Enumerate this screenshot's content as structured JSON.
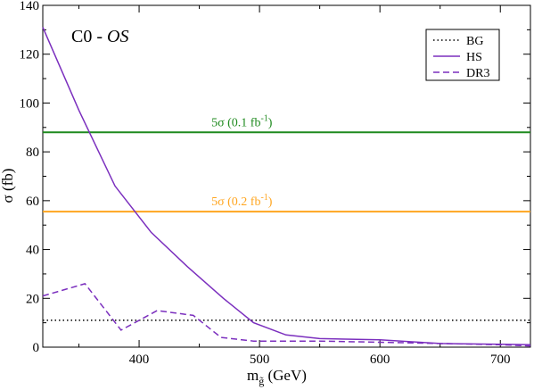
{
  "chart_data": {
    "type": "line",
    "title_main": "C0 - ",
    "title_italic": "OS",
    "ylabel": "σ (fb)",
    "xlabel_main": "m",
    "xlabel_sub": "g̃",
    "xlabel_unit": " (GeV)",
    "xlim": [
      320,
      725
    ],
    "ylim": [
      0,
      140
    ],
    "xticks": [
      400,
      500,
      600,
      700
    ],
    "yticks": [
      0,
      20,
      40,
      60,
      80,
      100,
      120,
      140
    ],
    "series": [
      {
        "name": "BG",
        "color": "#000000",
        "style": "dotted",
        "x": [
          320,
          725
        ],
        "y": [
          11,
          11
        ]
      },
      {
        "name": "HS",
        "color": "#7b2fbe",
        "style": "solid",
        "x": [
          320,
          350,
          380,
          410,
          440,
          470,
          495,
          522,
          550,
          600,
          650,
          700,
          725
        ],
        "y": [
          131,
          97,
          66,
          47,
          33,
          20,
          10,
          5,
          3.5,
          3,
          1.5,
          1.2,
          1
        ]
      },
      {
        "name": "DR3",
        "color": "#7b2fbe",
        "style": "dashed",
        "x": [
          320,
          355,
          385,
          415,
          445,
          468,
          495,
          550,
          600,
          650,
          700,
          725
        ],
        "y": [
          21,
          26,
          7,
          15,
          13,
          4,
          2.5,
          2.5,
          2,
          1.5,
          1,
          0.5
        ]
      }
    ],
    "reference_lines": [
      {
        "y": 88,
        "color": "#1e8a1e",
        "label_main": "5σ (0.1 fb",
        "label_sup": "-1",
        "label_end": ")"
      },
      {
        "y": 55.5,
        "color": "#ffa51f",
        "label_main": "5σ (0.2 fb",
        "label_sup": "-1",
        "label_end": ")"
      }
    ],
    "legend_position": "top-right"
  }
}
